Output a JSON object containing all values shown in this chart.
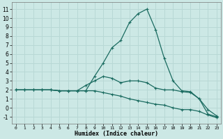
{
  "xlabel": "Humidex (Indice chaleur)",
  "bg_color": "#cce8e5",
  "grid_color": "#b8d8d5",
  "line_color": "#1a6b60",
  "xlim": [
    -0.5,
    23.5
  ],
  "ylim": [
    -1.8,
    11.8
  ],
  "xticks": [
    0,
    1,
    2,
    3,
    4,
    5,
    6,
    7,
    8,
    9,
    10,
    11,
    12,
    13,
    14,
    15,
    16,
    17,
    18,
    19,
    20,
    21,
    22,
    23
  ],
  "yticks": [
    -1,
    0,
    1,
    2,
    3,
    4,
    5,
    6,
    7,
    8,
    9,
    10,
    11
  ],
  "series": [
    [
      2.0,
      2.0,
      2.0,
      2.0,
      2.0,
      1.9,
      1.9,
      1.9,
      1.9,
      3.5,
      5.0,
      6.7,
      7.5,
      9.5,
      10.5,
      11.0,
      8.7,
      5.5,
      3.0,
      1.9,
      1.8,
      1.0,
      -0.7,
      -1.0
    ],
    [
      2.0,
      2.0,
      2.0,
      2.0,
      2.0,
      1.9,
      1.9,
      1.9,
      2.5,
      3.0,
      3.5,
      3.3,
      2.8,
      3.0,
      3.0,
      2.8,
      2.2,
      2.0,
      2.0,
      1.8,
      1.7,
      1.0,
      -0.2,
      -0.9
    ],
    [
      2.0,
      2.0,
      2.0,
      2.0,
      2.0,
      1.9,
      1.9,
      1.9,
      1.9,
      1.9,
      1.7,
      1.5,
      1.3,
      1.0,
      0.8,
      0.6,
      0.4,
      0.3,
      0.0,
      -0.2,
      -0.2,
      -0.4,
      -0.8,
      -1.1
    ]
  ]
}
